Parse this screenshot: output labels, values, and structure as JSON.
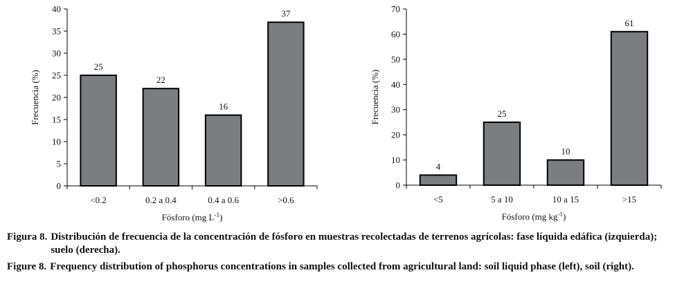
{
  "chart_data": [
    {
      "type": "bar",
      "ylabel": "Frecuencia (%)",
      "xlabel_base": "Fósforo (mg L",
      "xlabel_sup": "-1",
      "xlabel_end": ")",
      "categories": [
        "<0.2",
        "0.2 a 0.4",
        "0.4 a 0.6",
        ">0.6"
      ],
      "values": [
        25,
        22,
        16,
        37
      ],
      "data_labels": [
        "25",
        "22",
        "16",
        "37"
      ],
      "ylim": [
        0,
        40
      ],
      "yticks": [
        0,
        5,
        10,
        15,
        20,
        25,
        30,
        35,
        40
      ],
      "ytick_labels": [
        "0",
        "5",
        "10",
        "15",
        "20",
        "25",
        "30",
        "35",
        "40"
      ],
      "bar_color": "#7b7d80",
      "grid": false
    },
    {
      "type": "bar",
      "ylabel": "Frecuencia (%)",
      "xlabel_base": "Fósforo (mg kg",
      "xlabel_sup": "-1",
      "xlabel_end": ")",
      "categories": [
        "<5",
        "5 a 10",
        "10 a 15",
        ">15"
      ],
      "values": [
        4,
        25,
        10,
        61
      ],
      "data_labels": [
        "4",
        "25",
        "10",
        "61"
      ],
      "ylim": [
        0,
        70
      ],
      "yticks": [
        0,
        10,
        20,
        30,
        40,
        50,
        60,
        70
      ],
      "ytick_labels": [
        "0",
        "10",
        "20",
        "30",
        "40",
        "50",
        "60",
        "70"
      ],
      "bar_color": "#7b7d80",
      "grid": false
    }
  ],
  "captions": {
    "es": {
      "label": "Figura 8.",
      "text": "Distribución de frecuencia de la concentración de fósforo en muestras recolectadas de terrenos agrícolas: fase líquida edáfica (izquierda); suelo (derecha)."
    },
    "en": {
      "label": "Figure 8.",
      "text": "Frequency distribution of phosphorus concentrations in samples collected from agricultural land: soil liquid phase (left), soil (right)."
    }
  }
}
